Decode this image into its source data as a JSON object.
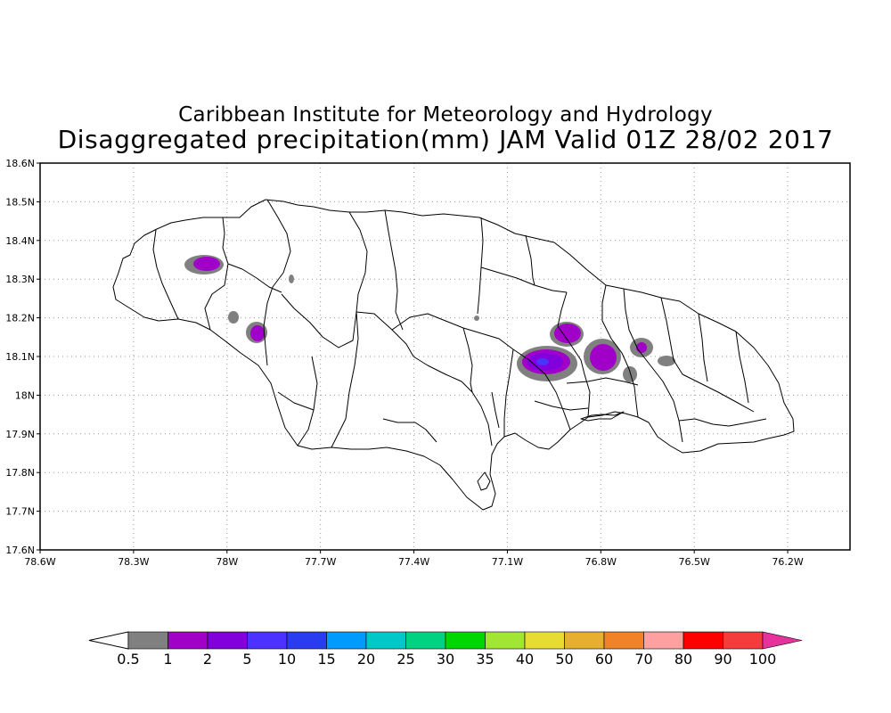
{
  "title_line1": "Caribbean Institute for Meteorology and Hydrology",
  "title_line2": "Disaggregated precipitation(mm) JAM Valid 01Z 28/02 2017",
  "lat_ticks": [
    "18.6N",
    "18.5N",
    "18.4N",
    "18.3N",
    "18.2N",
    "18.1N",
    "18N",
    "17.9N",
    "17.8N",
    "17.7N",
    "17.6N"
  ],
  "lat_values": [
    18.6,
    18.5,
    18.4,
    18.3,
    18.2,
    18.1,
    18.0,
    17.9,
    17.8,
    17.7,
    17.6
  ],
  "lon_ticks": [
    "78.6W",
    "78.3W",
    "78W",
    "77.7W",
    "77.4W",
    "77.1W",
    "76.8W",
    "76.5W",
    "76.2W"
  ],
  "lon_values": [
    -78.6,
    -78.3,
    -78.0,
    -77.7,
    -77.4,
    -77.1,
    -76.8,
    -76.5,
    -76.2
  ],
  "lon_range": [
    -78.6,
    -76.0
  ],
  "lat_range": [
    17.6,
    18.6
  ],
  "grid": "dotted",
  "colorbar": {
    "labels": [
      "0.5",
      "1",
      "2",
      "5",
      "10",
      "15",
      "20",
      "25",
      "30",
      "35",
      "40",
      "50",
      "60",
      "70",
      "80",
      "90",
      "100"
    ],
    "colors": [
      "#808080",
      "#a000c8",
      "#8200dc",
      "#4b32ff",
      "#2a3cf0",
      "#009bff",
      "#00c8c8",
      "#00d282",
      "#00d700",
      "#a0e632",
      "#e6dc32",
      "#e6af2d",
      "#f08228",
      "#ffa0a0",
      "#ff0000",
      "#f53c3c"
    ],
    "under_color": "#ffffff",
    "over_color": "#e6329b"
  },
  "precip_cells": [
    {
      "lon": -78.08,
      "lat": 18.34,
      "level": "1"
    },
    {
      "lon": -77.93,
      "lat": 18.16,
      "level": "1"
    },
    {
      "lon": -77.99,
      "lat": 18.2,
      "level": "0.5"
    },
    {
      "lon": -77.79,
      "lat": 18.3,
      "level": "0.5"
    },
    {
      "lon": -76.9,
      "lat": 18.17,
      "level": "1"
    },
    {
      "lon": -76.97,
      "lat": 18.09,
      "level": "2"
    },
    {
      "lon": -76.82,
      "lat": 18.1,
      "level": "1"
    },
    {
      "lon": -76.68,
      "lat": 18.12,
      "level": "1"
    },
    {
      "lon": -76.73,
      "lat": 18.05,
      "level": "0.5"
    },
    {
      "lon": -76.62,
      "lat": 18.09,
      "level": "0.5"
    },
    {
      "lon": -77.18,
      "lat": 18.2,
      "level": "0.5"
    }
  ]
}
